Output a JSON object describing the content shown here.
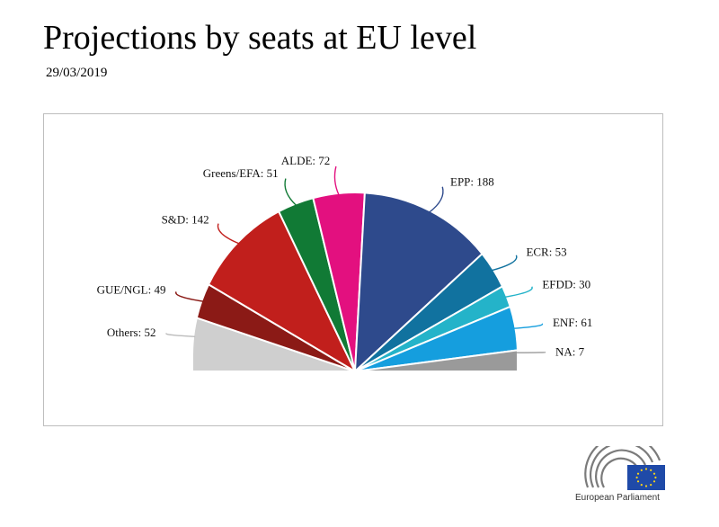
{
  "header": {
    "title": "Projections by seats at EU level",
    "date": "29/03/2019"
  },
  "logo": {
    "text": "European Parliament"
  },
  "chart_data": {
    "type": "pie",
    "variant": "semicircle-hemicycle",
    "total": 705,
    "series": [
      {
        "name": "Others",
        "label": "Others: 52",
        "value": 52,
        "color": "#cfcfcf"
      },
      {
        "name": "GUE/NGL",
        "label": "GUE/NGL: 49",
        "value": 49,
        "color": "#8b1a16"
      },
      {
        "name": "S&D",
        "label": "S&D: 142",
        "value": 142,
        "color": "#c11f1c"
      },
      {
        "name": "Greens/EFA",
        "label": "Greens/EFA: 51",
        "value": 51,
        "color": "#117a35"
      },
      {
        "name": "ALDE",
        "label": "ALDE: 72",
        "value": 72,
        "color": "#e3107f"
      },
      {
        "name": "EPP",
        "label": "EPP: 188",
        "value": 188,
        "color": "#2e4a8c"
      },
      {
        "name": "ECR",
        "label": "ECR: 53",
        "value": 53,
        "color": "#11729f"
      },
      {
        "name": "EFDD",
        "label": "EFDD: 30",
        "value": 30,
        "color": "#24b3c9"
      },
      {
        "name": "ENF",
        "label": "ENF: 61",
        "value": 61,
        "color": "#159ede"
      },
      {
        "name": "NA",
        "label": "NA: 7",
        "value": 7,
        "color": "#9a9a9a"
      }
    ]
  }
}
